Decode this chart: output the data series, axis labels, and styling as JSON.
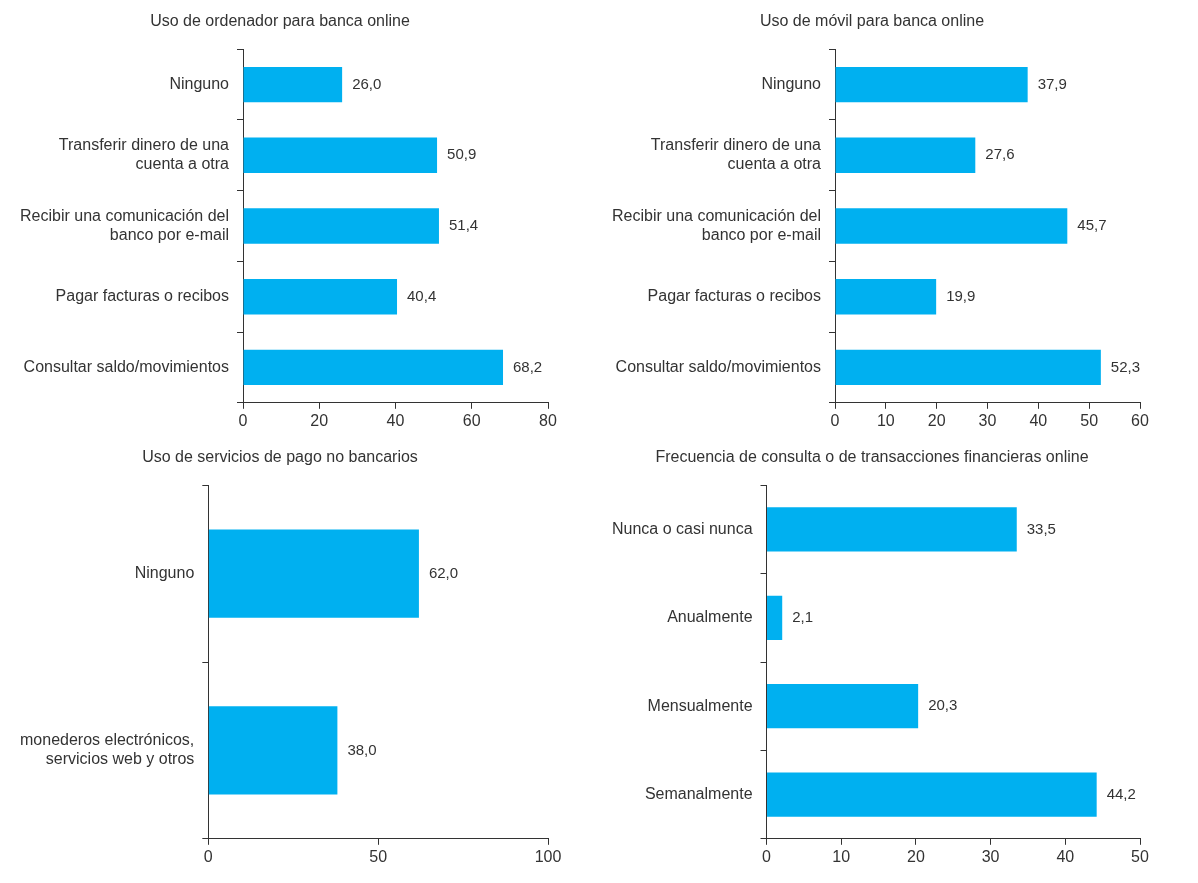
{
  "chart_data": [
    {
      "type": "bar",
      "orientation": "horizontal",
      "title": "Uso de ordenador para banca online",
      "categories": [
        "Ninguno",
        "Transferir dinero de una cuenta a otra",
        "Recibir una comunicación del banco por e-mail",
        "Pagar facturas o recibos",
        "Consultar saldo/movimientos"
      ],
      "values": [
        26.0,
        50.9,
        51.4,
        40.4,
        68.2
      ],
      "value_labels": [
        "26,0",
        "50,9",
        "51,4",
        "40,4",
        "68,2"
      ],
      "color": "#00b0f0",
      "xlim": [
        0,
        80
      ],
      "xticks": [
        0,
        20,
        40,
        60,
        80
      ],
      "grid": false,
      "legend": false
    },
    {
      "type": "bar",
      "orientation": "horizontal",
      "title": "Uso de móvil para banca online",
      "categories": [
        "Ninguno",
        "Transferir dinero de una cuenta a otra",
        "Recibir una comunicación del banco por e-mail",
        "Pagar facturas o recibos",
        "Consultar saldo/movimientos"
      ],
      "values": [
        37.9,
        27.6,
        45.7,
        19.9,
        52.3
      ],
      "value_labels": [
        "37,9",
        "27,6",
        "45,7",
        "19,9",
        "52,3"
      ],
      "color": "#00b0f0",
      "xlim": [
        0,
        60
      ],
      "xticks": [
        0,
        10,
        20,
        30,
        40,
        50,
        60
      ],
      "grid": false,
      "legend": false
    },
    {
      "type": "bar",
      "orientation": "horizontal",
      "title": "Uso de servicios de pago no bancarios",
      "categories": [
        "Ninguno",
        "monederos electrónicos, servicios web y otros"
      ],
      "values": [
        62.0,
        38.0
      ],
      "value_labels": [
        "62,0",
        "38,0"
      ],
      "color": "#00b0f0",
      "xlim": [
        0,
        100
      ],
      "xticks": [
        0,
        50,
        100
      ],
      "grid": false,
      "legend": false
    },
    {
      "type": "bar",
      "orientation": "horizontal",
      "title": "Frecuencia de consulta o de transacciones financieras online",
      "categories": [
        "Nunca o casi nunca",
        "Anualmente",
        "Mensualmente",
        "Semanalmente"
      ],
      "values": [
        33.5,
        2.1,
        20.3,
        44.2
      ],
      "value_labels": [
        "33,5",
        "2,1",
        "20,3",
        "44,2"
      ],
      "color": "#00b0f0",
      "xlim": [
        0,
        50
      ],
      "xticks": [
        0,
        10,
        20,
        30,
        40,
        50
      ],
      "grid": false,
      "legend": false
    }
  ]
}
